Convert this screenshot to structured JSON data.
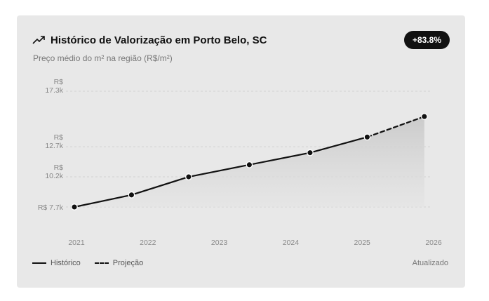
{
  "header": {
    "title": "Histórico de Valorização em Porto Belo, SC",
    "badge": "+83.8%",
    "icon": "trending-up-icon"
  },
  "subtitle": "Preço médio do m² na região (R$/m²)",
  "legend": {
    "historic": "Histórico",
    "projection": "Projeção"
  },
  "updated_label": "Atualizado",
  "colors": {
    "line": "#111111",
    "card_background": "#e8e8e8",
    "badge_background": "#111111"
  },
  "chart_data": {
    "type": "line",
    "title": "Histórico de Valorização em Porto Belo, SC",
    "subtitle": "Preço médio do m² na região (R$/m²)",
    "x_ticks": [
      "2021",
      "2022",
      "2023",
      "2024",
      "2025",
      "2026"
    ],
    "y_ticks": [
      {
        "value": 17300,
        "label": [
          "R$",
          "17.3k"
        ]
      },
      {
        "value": 12700,
        "label": [
          "R$",
          "12.7k"
        ]
      },
      {
        "value": 10200,
        "label": [
          "R$",
          "10.2k"
        ]
      },
      {
        "value": 7700,
        "label": [
          "R$ 7.7k"
        ]
      }
    ],
    "series": [
      {
        "name": "Histórico",
        "style": "solid",
        "points": [
          {
            "x": 2021.0,
            "y": 7700
          },
          {
            "x": 2021.8,
            "y": 8700
          },
          {
            "x": 2022.6,
            "y": 10200
          },
          {
            "x": 2023.45,
            "y": 11200
          },
          {
            "x": 2024.3,
            "y": 12200
          },
          {
            "x": 2025.1,
            "y": 13500
          }
        ]
      },
      {
        "name": "Projeção",
        "style": "dashed",
        "points": [
          {
            "x": 2025.1,
            "y": 13500
          },
          {
            "x": 2025.9,
            "y": 15200
          }
        ]
      }
    ],
    "area_fill": true,
    "grid": true,
    "legend_position": "bottom-left"
  }
}
